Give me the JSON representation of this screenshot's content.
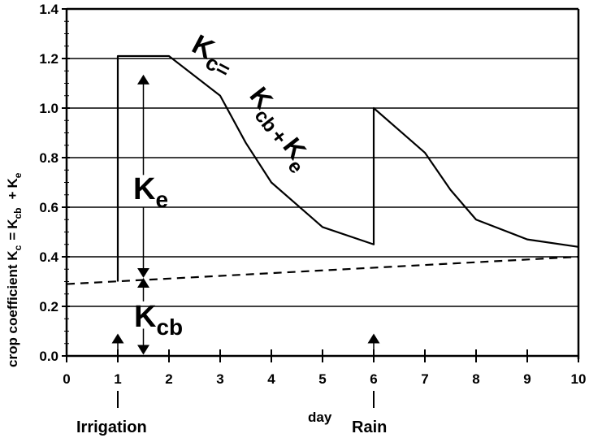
{
  "chart_data": {
    "type": "line",
    "title": "",
    "xlabel": "day",
    "ylabel": "crop coefficient K",
    "ylabel_parts": {
      "kc_sub": "c",
      "eq": "=",
      "kcb": "K",
      "kcb_sub": "cb",
      "plus": "+",
      "ke": "K",
      "ke_sub": "e"
    },
    "xlim": [
      0,
      10
    ],
    "ylim": [
      0,
      1.4
    ],
    "x_ticks": [
      "0",
      "1",
      "2",
      "3",
      "4",
      "5",
      "6",
      "7",
      "8",
      "9",
      "10"
    ],
    "y_ticks": [
      "0.0",
      "0.2",
      "0.4",
      "0.6",
      "0.8",
      "1.0",
      "1.2",
      "1.4"
    ],
    "grid": true,
    "series": [
      {
        "name": "Kc = Kcb + Ke",
        "style": "solid",
        "x": [
          1,
          1,
          2,
          3,
          3.5,
          4,
          4.5,
          5,
          6,
          6,
          6.5,
          7,
          7.5,
          8,
          9,
          10
        ],
        "y": [
          0.3,
          1.21,
          1.21,
          1.05,
          0.86,
          0.7,
          0.61,
          0.52,
          0.45,
          1.0,
          0.91,
          0.82,
          0.67,
          0.55,
          0.47,
          0.44
        ]
      },
      {
        "name": "Kcb",
        "style": "dashed",
        "x": [
          0,
          10
        ],
        "y": [
          0.29,
          0.4
        ]
      }
    ],
    "annotations": {
      "kc_label": "K",
      "kc_sub": "c",
      "kc_eq": "=",
      "sum_k1": "K",
      "sum_cb": "cb",
      "sum_plus": "+",
      "sum_k2": "K",
      "sum_e": "e",
      "ke_label": "K",
      "ke_sub": "e",
      "kcb_label": "K",
      "kcb_sub": "cb",
      "irrigation": "Irrigation",
      "irrigation_day": 1,
      "rain": "Rain",
      "rain_day": 6
    }
  }
}
